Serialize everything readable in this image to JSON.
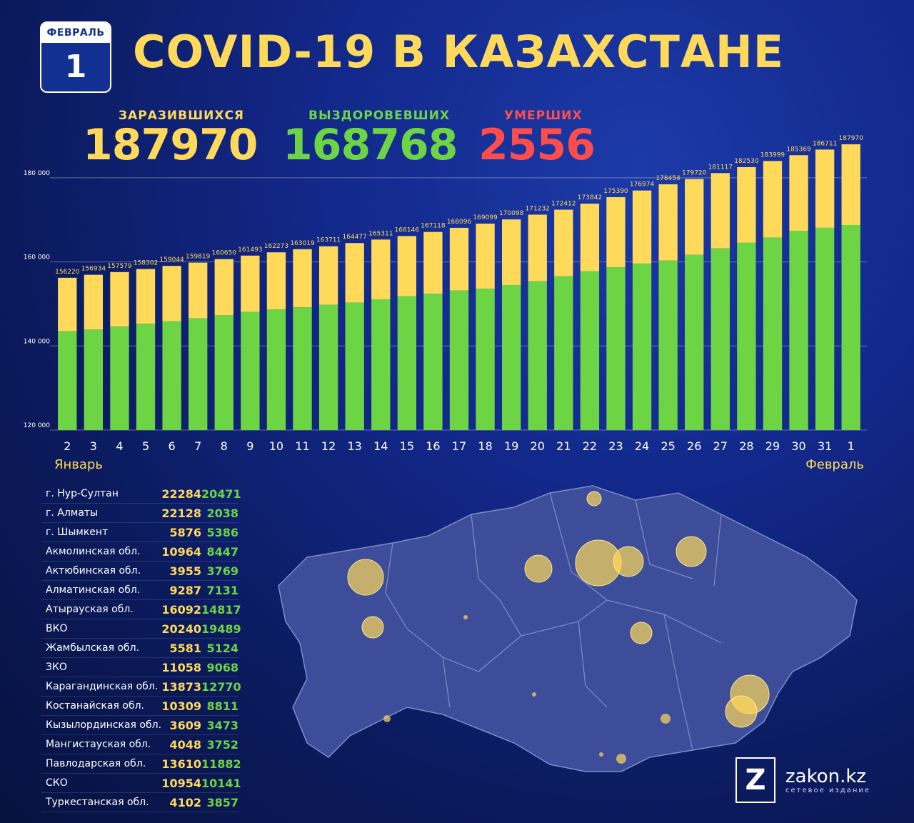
{
  "badge": {
    "month": "ФЕВРАЛЬ",
    "day": "1"
  },
  "title": "COVID-19 В КАЗАХСТАНЕ",
  "stats": {
    "infected": {
      "label": "ЗАРАЗИВШИХСЯ",
      "value": "187970"
    },
    "recovered": {
      "label": "ВЫЗДОРОВЕВШИХ",
      "value": "168768"
    },
    "deaths": {
      "label": "УМЕРШИХ",
      "value": "2556"
    }
  },
  "colors": {
    "infected": "#ffd95a",
    "recovered": "#6dd544",
    "deaths": "#ff4d4d"
  },
  "chart_data": {
    "type": "bar",
    "categories": [
      "2",
      "3",
      "4",
      "5",
      "6",
      "7",
      "8",
      "9",
      "10",
      "11",
      "12",
      "13",
      "14",
      "15",
      "16",
      "17",
      "18",
      "19",
      "20",
      "21",
      "22",
      "23",
      "24",
      "25",
      "26",
      "27",
      "28",
      "29",
      "30",
      "31",
      "1"
    ],
    "series": [
      {
        "values": [
          156220,
          156934,
          157579,
          158302,
          159044,
          159819,
          160650,
          161493,
          162273,
          163019,
          163711,
          164477,
          165311,
          166146,
          167118,
          168096,
          169099,
          170098,
          171232,
          172412,
          173842,
          175390,
          176974,
          178454,
          179720,
          181117,
          182530,
          183999,
          185369,
          186711,
          187970
        ]
      },
      {
        "values": [
          143500,
          143900,
          144600,
          145300,
          145900,
          146600,
          147300,
          148100,
          148700,
          149200,
          149800,
          150300,
          151100,
          151800,
          152400,
          153200,
          153600,
          154500,
          155400,
          156600,
          157800,
          158700,
          159600,
          160300,
          161700,
          163200,
          164600,
          165800,
          167400,
          168100,
          168768
        ]
      }
    ],
    "xlabel_start": "Январь",
    "xlabel_end": "Февраль",
    "ylim": [
      120000,
      190000
    ],
    "yticks": [
      120000,
      140000,
      160000,
      180000
    ],
    "ytick_labels": [
      "120 000",
      "140 000",
      "160 000",
      "180 000"
    ],
    "grid": true
  },
  "regions": [
    {
      "name": "г. Нур-Султан",
      "infected": "22284",
      "recovered": "20471"
    },
    {
      "name": "г. Алматы",
      "infected": "22128",
      "recovered": "2038"
    },
    {
      "name": "г. Шымкент",
      "infected": "5876",
      "recovered": "5386"
    },
    {
      "name": "Акмолинская обл.",
      "infected": "10964",
      "recovered": "8447"
    },
    {
      "name": "Актюбинская обл.",
      "infected": "3955",
      "recovered": "3769"
    },
    {
      "name": "Алматинская обл.",
      "infected": "9287",
      "recovered": "7131"
    },
    {
      "name": "Атырауская обл.",
      "infected": "16092",
      "recovered": "14817"
    },
    {
      "name": "ВКО",
      "infected": "20240",
      "recovered": "19489"
    },
    {
      "name": "Жамбылская обл.",
      "infected": "5581",
      "recovered": "5124"
    },
    {
      "name": "ЗКО",
      "infected": "11058",
      "recovered": "9068"
    },
    {
      "name": "Карагандинская обл.",
      "infected": "13873",
      "recovered": "12770"
    },
    {
      "name": "Костанайская обл.",
      "infected": "10309",
      "recovered": "8811"
    },
    {
      "name": "Кызылординская обл.",
      "infected": "3609",
      "recovered": "3473"
    },
    {
      "name": "Мангистауская обл.",
      "infected": "4048",
      "recovered": "3752"
    },
    {
      "name": "Павлодарская обл.",
      "infected": "13610",
      "recovered": "11882"
    },
    {
      "name": "СКО",
      "infected": "10954",
      "recovered": "10141"
    },
    {
      "name": "Туркестанская обл.",
      "infected": "4102",
      "recovered": "3857"
    }
  ],
  "logo": {
    "mark": "Z",
    "name": "zakon.kz",
    "sub": "сетевое издание"
  }
}
